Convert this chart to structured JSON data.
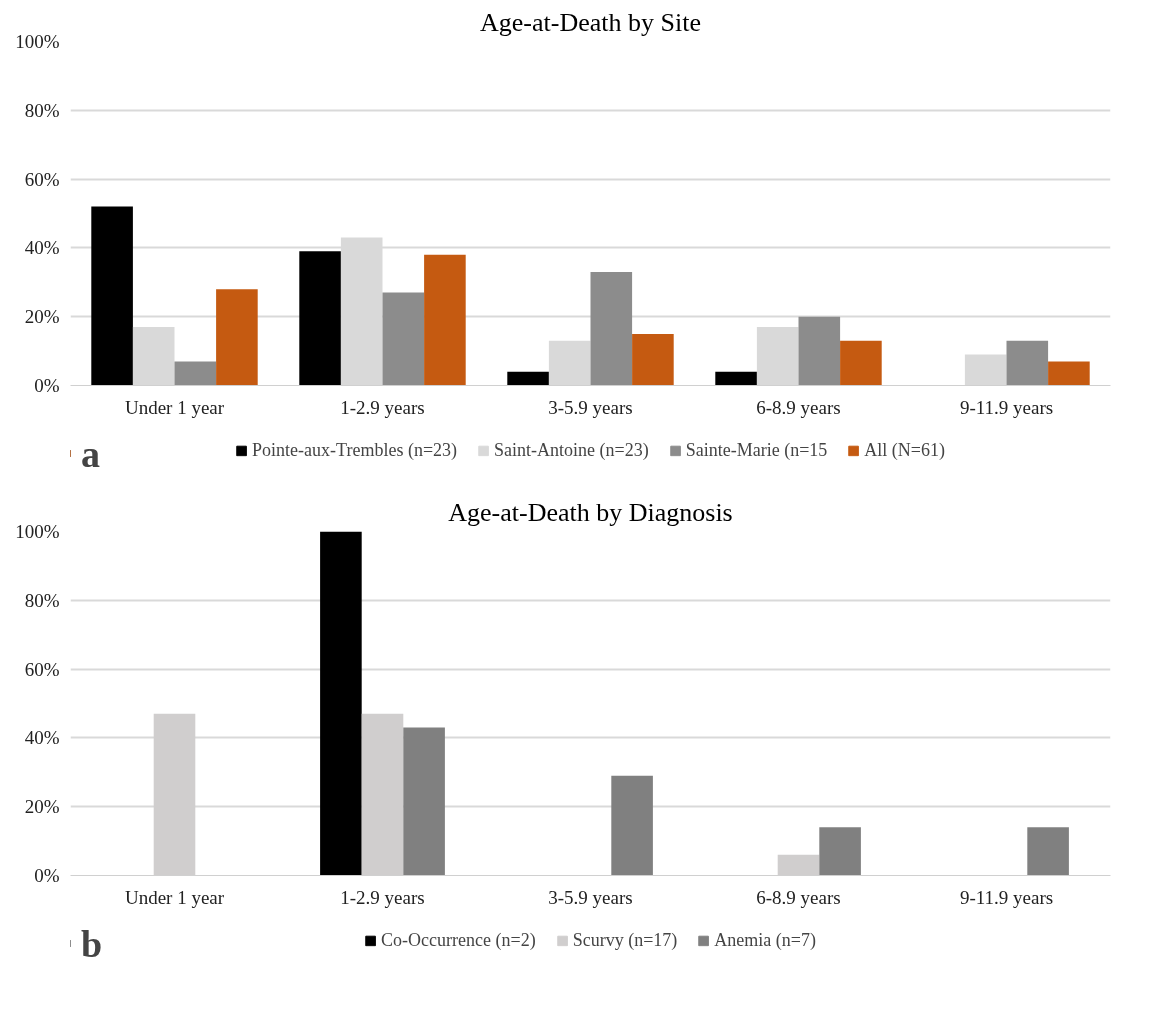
{
  "chart_data": [
    {
      "type": "bar",
      "title": "Age-at-Death by Site",
      "categories": [
        "Under 1 year",
        "1-2.9 years",
        "3-5.9 years",
        "6-8.9 years",
        "9-11.9 years"
      ],
      "series": [
        {
          "name": "Pointe-aux-Trembles (n=23)",
          "color": "#000000",
          "values": [
            52,
            39,
            4,
            4,
            0
          ]
        },
        {
          "name": "Saint-Antoine (n=23)",
          "color": "#d9d9d9",
          "values": [
            17,
            43,
            13,
            17,
            9
          ]
        },
        {
          "name": "Sainte-Marie (n=15",
          "color": "#8c8c8c",
          "values": [
            7,
            27,
            33,
            20,
            13
          ]
        },
        {
          "name": "All (N=61)",
          "color": "#c55a11",
          "values": [
            28,
            38,
            15,
            13,
            7
          ]
        }
      ],
      "ylim": [
        0,
        100
      ],
      "yticks": [
        {
          "value": 0,
          "label": "0%"
        },
        {
          "value": 20,
          "label": "20%"
        },
        {
          "value": 40,
          "label": "40%"
        },
        {
          "value": 60,
          "label": "60%"
        },
        {
          "value": 80,
          "label": "80%"
        },
        {
          "value": 100,
          "label": "100%"
        }
      ],
      "grid": "y",
      "legend": "bottom",
      "annotations": [
        "a"
      ]
    },
    {
      "type": "bar",
      "title": "Age-at-Death by Diagnosis",
      "categories": [
        "Under 1 year",
        "1-2.9 years",
        "3-5.9 years",
        "6-8.9 years",
        "9-11.9 years"
      ],
      "series": [
        {
          "name": "Co-Occurrence (n=2)",
          "color": "#000000",
          "values": [
            0,
            100,
            0,
            0,
            0
          ]
        },
        {
          "name": "Scurvy (n=17)",
          "color": "#d0cece",
          "values": [
            47,
            47,
            0,
            6,
            0
          ]
        },
        {
          "name": "Anemia (n=7)",
          "color": "#808080",
          "values": [
            0,
            43,
            29,
            14,
            14
          ]
        }
      ],
      "ylim": [
        0,
        100
      ],
      "yticks": [
        {
          "value": 0,
          "label": "0%"
        },
        {
          "value": 20,
          "label": "20%"
        },
        {
          "value": 40,
          "label": "40%"
        },
        {
          "value": 60,
          "label": "60%"
        },
        {
          "value": 80,
          "label": "80%"
        },
        {
          "value": 100,
          "label": "100%"
        }
      ],
      "grid": "y",
      "legend": "bottom",
      "annotations": [
        "b"
      ]
    }
  ]
}
